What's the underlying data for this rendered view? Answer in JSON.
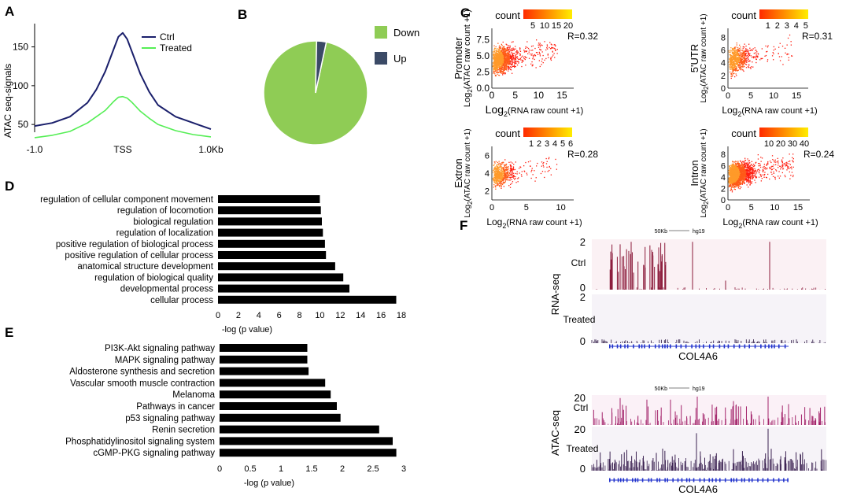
{
  "panels": {
    "A": "A",
    "B": "B",
    "C": "C",
    "D": "D",
    "E": "E",
    "F": "F"
  },
  "colors": {
    "ctrl_line": "#1a1f6b",
    "treated_line": "#55ee55",
    "pie_down": "#8fcc55",
    "pie_up": "#3b4a66",
    "bars": "#000000",
    "rna_ctrl": "#8b1a3a",
    "rna_treated": "#2a1540",
    "atac_ctrl": "#a3246b",
    "atac_treated": "#3a2050",
    "gene_track": "#2233cc",
    "scatter_low": "#ff2a00",
    "scatter_high": "#ffee00"
  },
  "panel_a": {
    "chart_data": {
      "type": "line",
      "ylabel": "ATAC seq-signals",
      "ylim": [
        40,
        180
      ],
      "yticks": [
        "50",
        "100",
        "150"
      ],
      "xticks": [
        "-1.0",
        "TSS",
        "1.0Kb"
      ],
      "series": [
        {
          "name": "Ctrl",
          "x": [
            -1.0,
            -0.8,
            -0.6,
            -0.4,
            -0.3,
            -0.2,
            -0.1,
            -0.05,
            0,
            0.05,
            0.1,
            0.2,
            0.3,
            0.4,
            0.6,
            0.8,
            1.0
          ],
          "values": [
            48,
            52,
            60,
            78,
            95,
            118,
            148,
            163,
            168,
            160,
            145,
            115,
            92,
            75,
            60,
            52,
            44
          ]
        },
        {
          "name": "Treated",
          "x": [
            -1.0,
            -0.8,
            -0.6,
            -0.4,
            -0.3,
            -0.2,
            -0.1,
            -0.05,
            0,
            0.05,
            0.1,
            0.2,
            0.3,
            0.4,
            0.6,
            0.8,
            1.0
          ],
          "values": [
            33,
            36,
            41,
            52,
            60,
            68,
            80,
            85,
            86,
            84,
            79,
            67,
            58,
            50,
            42,
            37,
            34
          ]
        }
      ]
    }
  },
  "panel_b": {
    "chart_data": {
      "type": "pie",
      "labels": [
        "Down",
        "Up"
      ],
      "values": [
        97,
        3
      ]
    }
  },
  "panel_c": {
    "x_axis_label_main": "Log",
    "x_axis_sub": "2",
    "x_axis_label_rest_big": "(RNA raw count +1)",
    "x_axis_label_rest_small": "(RNA raw count +1)",
    "y_axis_prefix": "Log",
    "y_axis_sub": "2",
    "y_axis_rest": "(ATAC raw count +1)",
    "count_label": "count",
    "plots": [
      {
        "region": "Promoter",
        "r": "R=0.32",
        "scale": [
          "5",
          "10",
          "15",
          "20"
        ],
        "xticks": [
          "0",
          "5",
          "10",
          "15"
        ],
        "yticks": [
          "0.0",
          "2.5",
          "5.0",
          "7.5"
        ]
      },
      {
        "region": "5'UTR",
        "r": "R=0.31",
        "scale": [
          "1",
          "2",
          "3",
          "4",
          "5"
        ],
        "xticks": [
          "0",
          "5",
          "10",
          "15"
        ],
        "yticks": [
          "0",
          "2",
          "4",
          "6",
          "8"
        ]
      },
      {
        "region": "Extron",
        "r": "R=0.28",
        "scale": [
          "1",
          "2",
          "3",
          "4",
          "5",
          "6"
        ],
        "xticks": [
          "0",
          "5",
          "10"
        ],
        "yticks": [
          "2",
          "4",
          "6"
        ]
      },
      {
        "region": "Intron",
        "r": "R=0.24",
        "scale": [
          "10",
          "20",
          "30",
          "40"
        ],
        "xticks": [
          "0",
          "5",
          "10",
          "15"
        ],
        "yticks": [
          "0",
          "2",
          "4",
          "6",
          "8"
        ]
      }
    ]
  },
  "panel_d": {
    "chart_data": {
      "type": "bar",
      "orientation": "horizontal",
      "categories": [
        "regulation of cellular component movement",
        "regulation of locomotion",
        "biological regulation",
        "regulation of localization",
        "positive regulation of biological process",
        "positive regulation of cellular process",
        "anatomical structure development",
        "regulation of biological quality",
        "developmental process",
        "cellular process"
      ],
      "values": [
        10.0,
        10.1,
        10.2,
        10.3,
        10.5,
        10.6,
        11.5,
        12.3,
        12.9,
        17.5
      ],
      "xlabel": "-log  (p value)",
      "xlim": [
        0,
        18
      ],
      "xticks": [
        "0",
        "2",
        "4",
        "6",
        "8",
        "10",
        "12",
        "14",
        "16",
        "18"
      ]
    }
  },
  "panel_e": {
    "chart_data": {
      "type": "bar",
      "orientation": "horizontal",
      "categories": [
        "PI3K-Akt signaling pathway",
        "MAPK signaling pathway",
        "Aldosterone synthesis and secretion",
        "Vascular smooth muscle contraction",
        "Melanoma",
        "Pathways in cancer",
        "p53 signaling pathway",
        "Renin secretion",
        "Phosphatidylinositol signaling system",
        "cGMP-PKG signaling pathway"
      ],
      "values": [
        1.43,
        1.43,
        1.45,
        1.72,
        1.81,
        1.91,
        1.97,
        2.6,
        2.82,
        2.88
      ],
      "xlabel": "-log  (p value)",
      "xlim": [
        0,
        3
      ],
      "xticks": [
        "0",
        "0.5",
        "1",
        "1.5",
        "2",
        "2.5",
        "3"
      ]
    }
  },
  "panel_f": {
    "scale_text": "50Kb",
    "genome": "hg19",
    "gene": "COL4A6",
    "rna": {
      "assay": "RNA-seq",
      "ctrl": "Ctrl",
      "treated": "Treated",
      "ymax": "2",
      "ymin": "0"
    },
    "atac": {
      "assay": "ATAC-seq",
      "ctrl": "Ctrl",
      "treated": "Treated",
      "ymax": "20",
      "ymin": "0"
    }
  }
}
